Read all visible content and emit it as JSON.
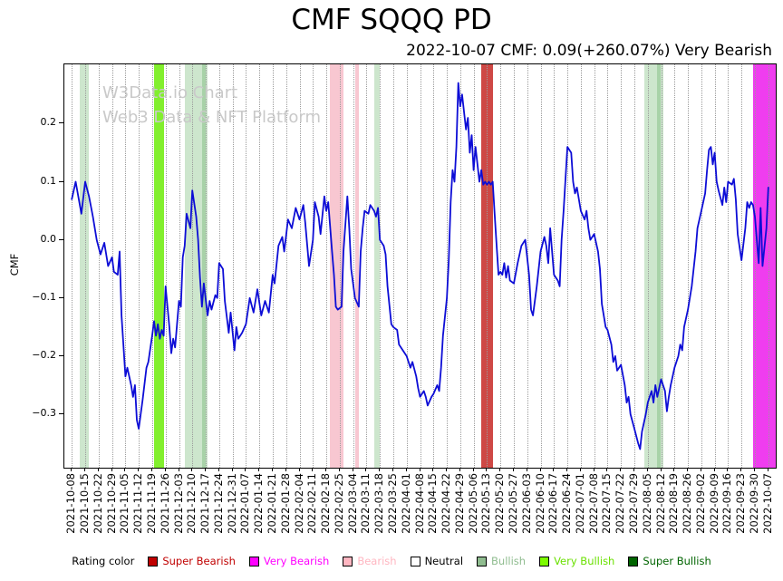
{
  "title": "CMF SQQQ PD",
  "subtitle": "2022-10-07 CMF: 0.09(+260.07%) Very Bearish",
  "watermark": {
    "line1": "W3Data.io Chart",
    "line2": "Web3 Data & NFT Platform"
  },
  "colors": {
    "line": "#0d0dd6",
    "grid": "#9b9b9b",
    "watermark": "#c9c9c9",
    "axis": "#000000"
  },
  "legend": {
    "label": "Rating color",
    "items": [
      {
        "label": "Super Bearish",
        "swatch": "#c00000",
        "text": "#c00000"
      },
      {
        "label": "Very Bearish",
        "swatch": "#ff00ff",
        "text": "#ff00ff"
      },
      {
        "label": "Bearish",
        "swatch": "#ffb6c1",
        "text": "#ffb6c1"
      },
      {
        "label": "Neutral",
        "swatch": "#ffffff",
        "text": "#000000"
      },
      {
        "label": "Bullish",
        "swatch": "#8fbc8f",
        "text": "#8fbc8f"
      },
      {
        "label": "Very Bullish",
        "swatch": "#7cfc00",
        "text": "#6ae000"
      },
      {
        "label": "Super Bullish",
        "swatch": "#006400",
        "text": "#006400"
      }
    ]
  },
  "chart_data": {
    "type": "line",
    "title": "CMF SQQQ PD",
    "xlabel": "",
    "ylabel": "CMF",
    "grid": "vertical-dotted",
    "legend_position": "bottom",
    "xlim": [
      -3.9,
      367.9
    ],
    "ylim": [
      -0.392,
      0.302
    ],
    "y_ticks": [
      0.2,
      0.1,
      0.0,
      -0.1,
      -0.2,
      -0.3
    ],
    "y_tick_labels": [
      "0.2",
      "0.1",
      "0.0",
      "−0.1",
      "−0.2",
      "−0.3"
    ],
    "x_tick_labels": [
      "2021-10-08",
      "2021-10-15",
      "2021-10-22",
      "2021-10-29",
      "2021-11-05",
      "2021-11-12",
      "2021-11-19",
      "2021-11-26",
      "2021-12-03",
      "2021-12-10",
      "2021-12-17",
      "2021-12-24",
      "2021-12-31",
      "2022-01-07",
      "2022-01-14",
      "2022-01-21",
      "2022-01-28",
      "2022-02-04",
      "2022-02-11",
      "2022-02-18",
      "2022-02-25",
      "2022-03-04",
      "2022-03-11",
      "2022-03-18",
      "2022-03-25",
      "2022-04-01",
      "2022-04-08",
      "2022-04-15",
      "2022-04-22",
      "2022-04-29",
      "2022-05-06",
      "2022-05-13",
      "2022-05-20",
      "2022-05-27",
      "2022-06-03",
      "2022-06-10",
      "2022-06-17",
      "2022-06-24",
      "2022-07-01",
      "2022-07-08",
      "2022-07-15",
      "2022-07-22",
      "2022-07-29",
      "2022-08-05",
      "2022-08-12",
      "2022-08-19",
      "2022-08-26",
      "2022-09-02",
      "2022-09-09",
      "2022-09-16",
      "2022-09-23",
      "2022-09-30",
      "2022-10-07"
    ],
    "x_tick_day_step": 7,
    "band_colors": {
      "bullish": "#cde6cd",
      "bullish_dark": "#a8d2a8",
      "very_bullish": "#82ef2e",
      "bearish": "#f8c7d1",
      "super_bearish": "#ce4845",
      "very_bearish": "#ef3def"
    },
    "bands": [
      {
        "rating": "Bullish",
        "color_key": "bullish",
        "start": 4,
        "end": 9
      },
      {
        "rating": "Very Bullish",
        "color_key": "very_bullish",
        "start": 43,
        "end": 48
      },
      {
        "rating": "Bullish",
        "color_key": "bullish",
        "start": 59,
        "end": 71
      },
      {
        "rating": "Bullish",
        "color_key": "bullish_dark",
        "start": 68,
        "end": 70
      },
      {
        "rating": "Bearish",
        "color_key": "bearish",
        "start": 135,
        "end": 142
      },
      {
        "rating": "Bearish",
        "color_key": "bearish",
        "start": 148,
        "end": 150
      },
      {
        "rating": "Bullish",
        "color_key": "bullish",
        "start": 158,
        "end": 161
      },
      {
        "rating": "Super Bearish",
        "color_key": "super_bearish",
        "start": 214,
        "end": 220
      },
      {
        "rating": "Bullish",
        "color_key": "bullish",
        "start": 299,
        "end": 309
      },
      {
        "rating": "Bullish",
        "color_key": "bullish_dark",
        "start": 306,
        "end": 308
      },
      {
        "rating": "Very Bearish",
        "color_key": "very_bearish",
        "start": 356,
        "end": 368
      }
    ],
    "series": [
      {
        "name": "CMF",
        "color": "#0d0dd6",
        "points": [
          [
            0,
            0.07
          ],
          [
            2,
            0.1
          ],
          [
            5,
            0.045
          ],
          [
            7,
            0.1
          ],
          [
            9,
            0.075
          ],
          [
            11,
            0.04
          ],
          [
            13,
            0.0
          ],
          [
            15,
            -0.025
          ],
          [
            17,
            -0.005
          ],
          [
            19,
            -0.045
          ],
          [
            21,
            -0.03
          ],
          [
            22,
            -0.055
          ],
          [
            24,
            -0.06
          ],
          [
            25,
            -0.02
          ],
          [
            26,
            -0.13
          ],
          [
            28,
            -0.235
          ],
          [
            29,
            -0.22
          ],
          [
            31,
            -0.25
          ],
          [
            32,
            -0.27
          ],
          [
            33,
            -0.25
          ],
          [
            34,
            -0.31
          ],
          [
            35,
            -0.325
          ],
          [
            37,
            -0.275
          ],
          [
            39,
            -0.22
          ],
          [
            40,
            -0.21
          ],
          [
            42,
            -0.165
          ],
          [
            43,
            -0.14
          ],
          [
            44,
            -0.165
          ],
          [
            45,
            -0.145
          ],
          [
            46,
            -0.17
          ],
          [
            47,
            -0.155
          ],
          [
            48,
            -0.165
          ],
          [
            49,
            -0.08
          ],
          [
            51,
            -0.15
          ],
          [
            52,
            -0.195
          ],
          [
            53,
            -0.17
          ],
          [
            54,
            -0.185
          ],
          [
            56,
            -0.105
          ],
          [
            57,
            -0.115
          ],
          [
            58,
            -0.03
          ],
          [
            59,
            -0.01
          ],
          [
            60,
            0.045
          ],
          [
            62,
            0.02
          ],
          [
            63,
            0.085
          ],
          [
            65,
            0.04
          ],
          [
            66,
            0.0
          ],
          [
            67,
            -0.065
          ],
          [
            68,
            -0.115
          ],
          [
            69,
            -0.075
          ],
          [
            71,
            -0.13
          ],
          [
            72,
            -0.105
          ],
          [
            73,
            -0.12
          ],
          [
            75,
            -0.095
          ],
          [
            76,
            -0.1
          ],
          [
            77,
            -0.04
          ],
          [
            79,
            -0.05
          ],
          [
            80,
            -0.105
          ],
          [
            82,
            -0.16
          ],
          [
            83,
            -0.125
          ],
          [
            85,
            -0.19
          ],
          [
            86,
            -0.15
          ],
          [
            87,
            -0.17
          ],
          [
            89,
            -0.16
          ],
          [
            91,
            -0.145
          ],
          [
            93,
            -0.1
          ],
          [
            95,
            -0.125
          ],
          [
            97,
            -0.085
          ],
          [
            99,
            -0.13
          ],
          [
            101,
            -0.105
          ],
          [
            103,
            -0.125
          ],
          [
            105,
            -0.06
          ],
          [
            106,
            -0.075
          ],
          [
            108,
            -0.01
          ],
          [
            110,
            0.005
          ],
          [
            111,
            -0.02
          ],
          [
            113,
            0.035
          ],
          [
            115,
            0.02
          ],
          [
            117,
            0.055
          ],
          [
            119,
            0.035
          ],
          [
            121,
            0.06
          ],
          [
            122,
            0.03
          ],
          [
            124,
            -0.045
          ],
          [
            126,
            0.0
          ],
          [
            127,
            0.065
          ],
          [
            129,
            0.04
          ],
          [
            130,
            0.01
          ],
          [
            132,
            0.075
          ],
          [
            133,
            0.05
          ],
          [
            134,
            0.065
          ],
          [
            136,
            -0.02
          ],
          [
            137,
            -0.06
          ],
          [
            138,
            -0.115
          ],
          [
            139,
            -0.12
          ],
          [
            141,
            -0.115
          ],
          [
            142,
            -0.02
          ],
          [
            144,
            0.075
          ],
          [
            145,
            0.02
          ],
          [
            146,
            -0.05
          ],
          [
            148,
            -0.1
          ],
          [
            150,
            -0.115
          ],
          [
            151,
            -0.02
          ],
          [
            152,
            0.02
          ],
          [
            153,
            0.05
          ],
          [
            155,
            0.045
          ],
          [
            156,
            0.06
          ],
          [
            158,
            0.05
          ],
          [
            159,
            0.04
          ],
          [
            160,
            0.055
          ],
          [
            161,
            0.0
          ],
          [
            163,
            -0.01
          ],
          [
            164,
            -0.025
          ],
          [
            165,
            -0.08
          ],
          [
            167,
            -0.145
          ],
          [
            168,
            -0.15
          ],
          [
            170,
            -0.155
          ],
          [
            171,
            -0.18
          ],
          [
            173,
            -0.19
          ],
          [
            175,
            -0.2
          ],
          [
            177,
            -0.22
          ],
          [
            178,
            -0.21
          ],
          [
            180,
            -0.235
          ],
          [
            181,
            -0.255
          ],
          [
            182,
            -0.27
          ],
          [
            184,
            -0.26
          ],
          [
            185,
            -0.27
          ],
          [
            186,
            -0.285
          ],
          [
            188,
            -0.27
          ],
          [
            189,
            -0.265
          ],
          [
            191,
            -0.25
          ],
          [
            192,
            -0.26
          ],
          [
            193,
            -0.22
          ],
          [
            194,
            -0.165
          ],
          [
            196,
            -0.1
          ],
          [
            197,
            -0.035
          ],
          [
            198,
            0.065
          ],
          [
            199,
            0.12
          ],
          [
            200,
            0.1
          ],
          [
            201,
            0.16
          ],
          [
            202,
            0.27
          ],
          [
            203,
            0.23
          ],
          [
            204,
            0.25
          ],
          [
            206,
            0.19
          ],
          [
            207,
            0.21
          ],
          [
            208,
            0.15
          ],
          [
            209,
            0.18
          ],
          [
            210,
            0.12
          ],
          [
            211,
            0.16
          ],
          [
            213,
            0.1
          ],
          [
            214,
            0.12
          ],
          [
            215,
            0.095
          ],
          [
            216,
            0.1
          ],
          [
            217,
            0.095
          ],
          [
            218,
            0.1
          ],
          [
            219,
            0.095
          ],
          [
            220,
            0.1
          ],
          [
            221,
            0.045
          ],
          [
            222,
            -0.01
          ],
          [
            223,
            -0.06
          ],
          [
            224,
            -0.055
          ],
          [
            225,
            -0.06
          ],
          [
            226,
            -0.04
          ],
          [
            227,
            -0.065
          ],
          [
            228,
            -0.045
          ],
          [
            229,
            -0.07
          ],
          [
            231,
            -0.075
          ],
          [
            233,
            -0.04
          ],
          [
            235,
            -0.01
          ],
          [
            237,
            0.0
          ],
          [
            239,
            -0.06
          ],
          [
            240,
            -0.12
          ],
          [
            241,
            -0.13
          ],
          [
            243,
            -0.08
          ],
          [
            245,
            -0.02
          ],
          [
            247,
            0.005
          ],
          [
            248,
            -0.01
          ],
          [
            249,
            -0.04
          ],
          [
            250,
            0.02
          ],
          [
            252,
            -0.06
          ],
          [
            254,
            -0.07
          ],
          [
            255,
            -0.08
          ],
          [
            256,
            0.0
          ],
          [
            257,
            0.05
          ],
          [
            259,
            0.16
          ],
          [
            261,
            0.15
          ],
          [
            262,
            0.1
          ],
          [
            263,
            0.08
          ],
          [
            264,
            0.09
          ],
          [
            266,
            0.05
          ],
          [
            268,
            0.035
          ],
          [
            269,
            0.05
          ],
          [
            270,
            0.02
          ],
          [
            271,
            0.0
          ],
          [
            273,
            0.01
          ],
          [
            275,
            -0.02
          ],
          [
            276,
            -0.05
          ],
          [
            277,
            -0.11
          ],
          [
            279,
            -0.15
          ],
          [
            280,
            -0.155
          ],
          [
            282,
            -0.18
          ],
          [
            283,
            -0.21
          ],
          [
            284,
            -0.2
          ],
          [
            285,
            -0.225
          ],
          [
            287,
            -0.215
          ],
          [
            289,
            -0.25
          ],
          [
            290,
            -0.28
          ],
          [
            291,
            -0.27
          ],
          [
            292,
            -0.3
          ],
          [
            294,
            -0.325
          ],
          [
            296,
            -0.35
          ],
          [
            297,
            -0.36
          ],
          [
            298,
            -0.33
          ],
          [
            300,
            -0.3
          ],
          [
            301,
            -0.28
          ],
          [
            303,
            -0.26
          ],
          [
            304,
            -0.28
          ],
          [
            305,
            -0.25
          ],
          [
            306,
            -0.27
          ],
          [
            308,
            -0.24
          ],
          [
            310,
            -0.26
          ],
          [
            311,
            -0.295
          ],
          [
            312,
            -0.27
          ],
          [
            313,
            -0.25
          ],
          [
            315,
            -0.22
          ],
          [
            317,
            -0.2
          ],
          [
            318,
            -0.18
          ],
          [
            319,
            -0.19
          ],
          [
            320,
            -0.15
          ],
          [
            322,
            -0.12
          ],
          [
            324,
            -0.08
          ],
          [
            325,
            -0.05
          ],
          [
            326,
            -0.02
          ],
          [
            327,
            0.02
          ],
          [
            329,
            0.05
          ],
          [
            331,
            0.08
          ],
          [
            332,
            0.12
          ],
          [
            333,
            0.155
          ],
          [
            334,
            0.16
          ],
          [
            335,
            0.13
          ],
          [
            336,
            0.15
          ],
          [
            337,
            0.1
          ],
          [
            338,
            0.085
          ],
          [
            340,
            0.06
          ],
          [
            341,
            0.09
          ],
          [
            342,
            0.065
          ],
          [
            343,
            0.1
          ],
          [
            345,
            0.095
          ],
          [
            346,
            0.105
          ],
          [
            347,
            0.07
          ],
          [
            348,
            0.01
          ],
          [
            350,
            -0.035
          ],
          [
            352,
            0.02
          ],
          [
            353,
            0.065
          ],
          [
            354,
            0.055
          ],
          [
            355,
            0.065
          ],
          [
            356,
            0.06
          ],
          [
            357,
            0.04
          ],
          [
            359,
            -0.04
          ],
          [
            360,
            0.055
          ],
          [
            361,
            -0.045
          ],
          [
            363,
            0.02
          ],
          [
            364,
            0.09
          ]
        ]
      }
    ]
  }
}
